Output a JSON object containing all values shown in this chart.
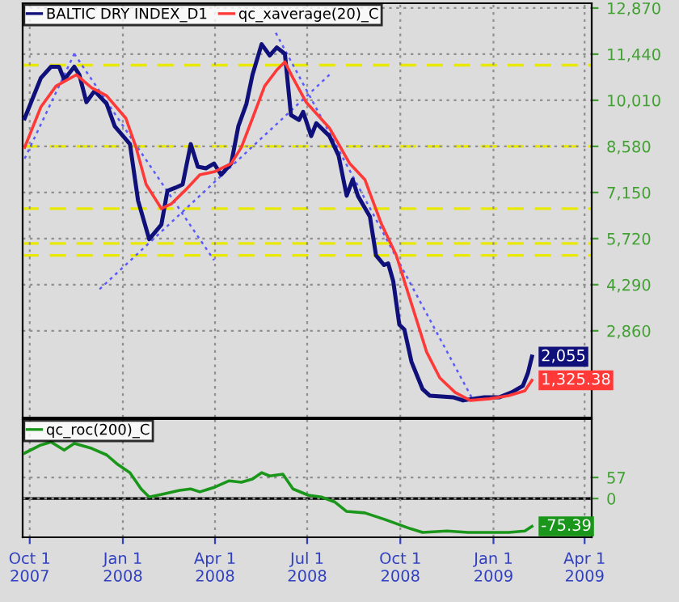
{
  "chart_data": [
    {
      "type": "line",
      "xlim": [
        "2007-09-24",
        "2009-04-08"
      ],
      "ylim": [
        170,
        13020
      ],
      "tick_labels": "y",
      "grid": true,
      "legend": "top left",
      "xticks": [
        {
          "value": "2007-10-01",
          "label": null
        },
        {
          "value": "2008-01-01",
          "label": null
        },
        {
          "value": "2008-04-01",
          "label": null
        },
        {
          "value": "2008-07-01",
          "label": null
        },
        {
          "value": "2008-10-01",
          "label": null
        },
        {
          "value": "2009-01-01",
          "label": null
        },
        {
          "value": "2009-04-01",
          "label": null
        }
      ],
      "yticks": [
        {
          "value": 2860,
          "label": "2,860"
        },
        {
          "value": 4290,
          "label": "4,290"
        },
        {
          "value": 5720,
          "label": "5,720"
        },
        {
          "value": 7150,
          "label": "7,150"
        },
        {
          "value": 8580,
          "label": "8,580"
        },
        {
          "value": 10010,
          "label": "10,010"
        },
        {
          "value": 11440,
          "label": "11,440"
        },
        {
          "value": 12870,
          "label": "12,870"
        }
      ],
      "ref_lines": [
        {
          "axis": "y",
          "value": 11100,
          "color": "#e8e800",
          "line_style": "dashed"
        },
        {
          "axis": "y",
          "value": 8580,
          "color": "#e8e800",
          "line_style": "dashed"
        },
        {
          "axis": "y",
          "value": 6650,
          "color": "#e8e800",
          "line_style": "dashed"
        },
        {
          "axis": "y",
          "value": 5570,
          "color": "#e8e800",
          "line_style": "dashed"
        },
        {
          "axis": "y",
          "value": 5200,
          "color": "#e8e800",
          "line_style": "dashed"
        }
      ],
      "series": [
        {
          "line_style": "dotted",
          "color": "#5a5aff",
          "x": [
            "2007-09-26",
            "2007-11-14"
          ],
          "values": [
            8200,
            11450
          ]
        },
        {
          "line_style": "dotted",
          "color": "#5a5aff",
          "x": [
            "2007-11-14",
            "2008-03-31"
          ],
          "values": [
            11450,
            5050
          ]
        },
        {
          "line_style": "dotted",
          "color": "#5a5aff",
          "x": [
            "2007-12-09",
            "2008-07-23"
          ],
          "values": [
            4150,
            10800
          ]
        },
        {
          "line_style": "dotted",
          "color": "#5a5aff",
          "x": [
            "2008-05-31",
            "2008-12-12"
          ],
          "values": [
            12100,
            700
          ]
        },
        {
          "name": "BALTIC DRY INDEX_D1",
          "color": "#10107a",
          "line_style": "solid",
          "x": [
            "2007-09-26",
            "2007-10-12",
            "2007-10-22",
            "2007-10-30",
            "2007-11-04",
            "2007-11-14",
            "2007-11-19",
            "2007-11-26",
            "2007-12-04",
            "2007-12-16",
            "2007-12-24",
            "2008-01-08",
            "2008-01-16",
            "2008-01-27",
            "2008-02-08",
            "2008-02-14",
            "2008-02-22",
            "2008-02-29",
            "2008-03-08",
            "2008-03-15",
            "2008-03-23",
            "2008-03-31",
            "2008-04-07",
            "2008-04-17",
            "2008-04-24",
            "2008-05-02",
            "2008-05-08",
            "2008-05-17",
            "2008-05-25",
            "2008-06-01",
            "2008-06-09",
            "2008-06-15",
            "2008-06-23",
            "2008-06-27",
            "2008-07-05",
            "2008-07-10",
            "2008-07-23",
            "2008-08-01",
            "2008-08-09",
            "2008-08-15",
            "2008-08-20",
            "2008-09-01",
            "2008-09-07",
            "2008-09-15",
            "2008-09-19",
            "2008-09-24",
            "2008-09-30",
            "2008-10-05",
            "2008-10-12",
            "2008-10-23",
            "2008-10-30",
            "2008-11-22",
            "2008-12-02",
            "2008-12-12",
            "2008-12-23",
            "2009-01-07",
            "2009-01-19",
            "2009-01-30",
            "2009-02-04",
            "2009-02-08"
          ],
          "values": [
            9450,
            10700,
            11050,
            11050,
            10650,
            11050,
            10800,
            9950,
            10300,
            9900,
            9200,
            8650,
            6900,
            5700,
            6150,
            7200,
            7300,
            7400,
            8650,
            7950,
            7900,
            8050,
            7700,
            8050,
            9200,
            9900,
            10800,
            11750,
            11400,
            11650,
            11450,
            9550,
            9400,
            9650,
            8900,
            9300,
            8900,
            8300,
            7050,
            7550,
            7050,
            6400,
            5200,
            4900,
            4950,
            4400,
            3050,
            2900,
            1900,
            1050,
            850,
            800,
            700,
            750,
            800,
            800,
            950,
            1150,
            1550,
            2055
          ],
          "value_labels": [
            null,
            null,
            null,
            null,
            null,
            null,
            null,
            null,
            null,
            null,
            null,
            null,
            null,
            null,
            null,
            null,
            null,
            null,
            null,
            null,
            null,
            null,
            null,
            null,
            null,
            null,
            null,
            null,
            null,
            null,
            null,
            null,
            null,
            null,
            null,
            null,
            null,
            null,
            null,
            null,
            null,
            null,
            null,
            null,
            null,
            null,
            null,
            null,
            null,
            null,
            null,
            null,
            null,
            null,
            null,
            null,
            null,
            null,
            null,
            "2,055"
          ]
        },
        {
          "name": "qc_xaverage(20)_C",
          "color": "#ff3838",
          "line_style": "solid",
          "x": [
            "2007-09-26",
            "2007-10-12",
            "2007-10-27",
            "2007-11-16",
            "2007-12-01",
            "2007-12-16",
            "2008-01-04",
            "2008-01-14",
            "2008-01-24",
            "2008-02-08",
            "2008-02-18",
            "2008-03-02",
            "2008-03-17",
            "2008-04-01",
            "2008-04-17",
            "2008-04-27",
            "2008-05-08",
            "2008-05-20",
            "2008-06-01",
            "2008-06-09",
            "2008-06-17",
            "2008-06-30",
            "2008-07-23",
            "2008-08-12",
            "2008-08-27",
            "2008-09-12",
            "2008-09-27",
            "2008-10-12",
            "2008-10-27",
            "2008-11-09",
            "2008-11-24",
            "2008-12-09",
            "2008-12-28",
            "2009-01-16",
            "2009-02-01",
            "2009-02-08"
          ],
          "values": [
            8550,
            9800,
            10450,
            10800,
            10400,
            10150,
            9450,
            8550,
            7400,
            6650,
            6800,
            7200,
            7700,
            7800,
            8050,
            8550,
            9450,
            10450,
            10950,
            11200,
            10700,
            9950,
            9150,
            8050,
            7550,
            6200,
            5200,
            3700,
            2200,
            1400,
            950,
            700,
            750,
            850,
            1000,
            1325.38
          ],
          "value_labels": [
            null,
            null,
            null,
            null,
            null,
            null,
            null,
            null,
            null,
            null,
            null,
            null,
            null,
            null,
            null,
            null,
            null,
            null,
            null,
            null,
            null,
            null,
            null,
            null,
            null,
            null,
            null,
            null,
            null,
            null,
            null,
            null,
            null,
            null,
            null,
            "1,325.38"
          ]
        }
      ]
    },
    {
      "type": "line",
      "xlim": [
        "2007-09-24",
        "2009-04-08"
      ],
      "ylim": [
        -105,
        215
      ],
      "grid": true,
      "legend": "top left",
      "xticks": [
        {
          "value": "2007-10-01",
          "label": "Oct 1\n2007"
        },
        {
          "value": "2008-01-01",
          "label": "Jan 1\n2008"
        },
        {
          "value": "2008-04-01",
          "label": "Apr 1\n2008"
        },
        {
          "value": "2008-07-01",
          "label": "Jul 1\n2008"
        },
        {
          "value": "2008-10-01",
          "label": "Oct 1\n2008"
        },
        {
          "value": "2009-01-01",
          "label": "Jan 1\n2009"
        },
        {
          "value": "2009-04-01",
          "label": "Apr 1\n2009"
        }
      ],
      "yticks": [
        0,
        57
      ],
      "ref_lines": [
        {
          "axis": "y",
          "value": 0,
          "color": "#000000",
          "line_style": "solid"
        }
      ],
      "series": [
        {
          "name": "qc_roc(200)_C",
          "color": "#1a961a",
          "line_style": "solid",
          "x": [
            "2007-09-26",
            "2007-10-12",
            "2007-10-22",
            "2007-11-04",
            "2007-11-14",
            "2007-12-01",
            "2007-12-16",
            "2007-12-27",
            "2008-01-08",
            "2008-01-19",
            "2008-01-27",
            "2008-02-11",
            "2008-02-26",
            "2008-03-08",
            "2008-03-17",
            "2008-04-01",
            "2008-04-15",
            "2008-04-27",
            "2008-05-08",
            "2008-05-17",
            "2008-05-25",
            "2008-06-07",
            "2008-06-17",
            "2008-07-02",
            "2008-07-15",
            "2008-07-28",
            "2008-08-09",
            "2008-08-27",
            "2008-09-16",
            "2008-10-08",
            "2008-10-23",
            "2008-11-16",
            "2008-12-07",
            "2008-12-28",
            "2009-01-16",
            "2009-02-01",
            "2009-02-08"
          ],
          "values": [
            123,
            145,
            153,
            131,
            149,
            136,
            118,
            92,
            70,
            26,
            4,
            13,
            22,
            26,
            18,
            31,
            48,
            44,
            53,
            70,
            61,
            66,
            26,
            9,
            4,
            -9,
            -35,
            -39,
            -57,
            -79,
            -92,
            -88,
            -92,
            -92,
            -92,
            -88,
            -75.39
          ],
          "value_labels": [
            null,
            null,
            null,
            null,
            null,
            null,
            null,
            null,
            null,
            null,
            null,
            null,
            null,
            null,
            null,
            null,
            null,
            null,
            null,
            null,
            null,
            null,
            null,
            null,
            null,
            null,
            null,
            null,
            null,
            null,
            null,
            null,
            null,
            null,
            null,
            null,
            "-75.39"
          ]
        }
      ]
    }
  ]
}
